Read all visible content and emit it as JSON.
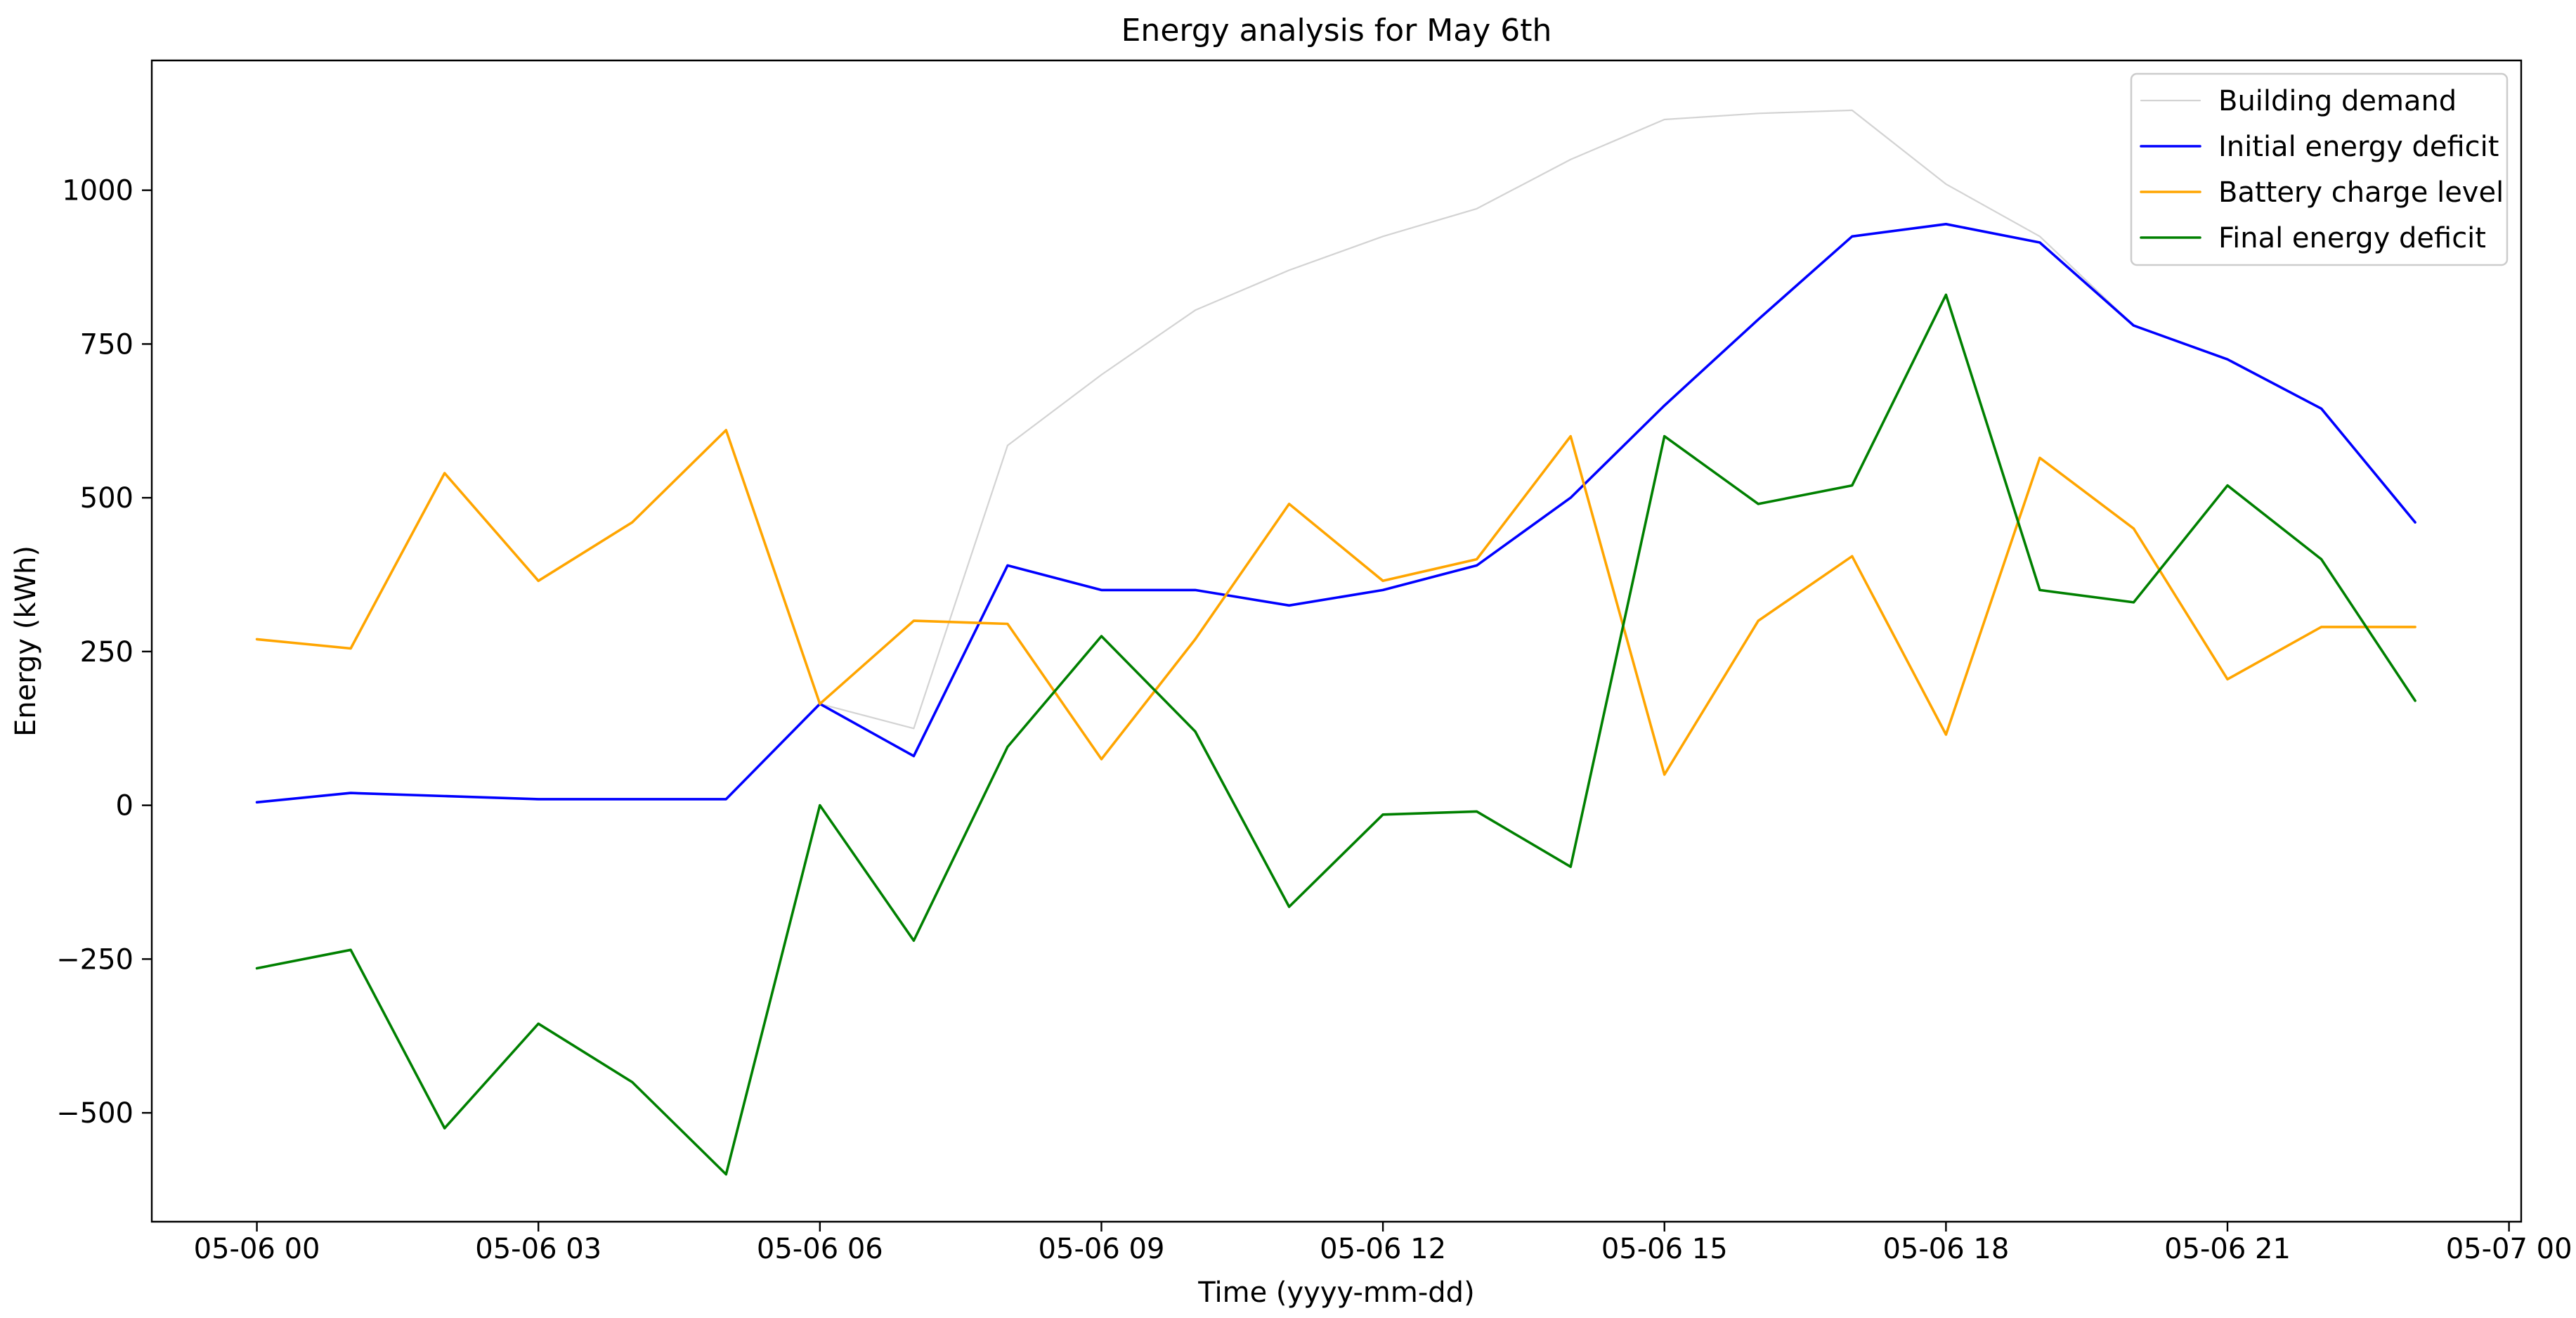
{
  "window": {
    "background": "#ffffff"
  },
  "chart_data": {
    "type": "line",
    "title": "Energy analysis for May 6th",
    "xlabel": "Time (yyyy-mm-dd)",
    "ylabel": "Energy (kWh)",
    "grid": false,
    "legend_position": "upper right",
    "xlim_hours": [
      -1.12,
      24.13
    ],
    "ylim": [
      -677,
      1211
    ],
    "x_hours": [
      0,
      1,
      2,
      3,
      4,
      5,
      6,
      7,
      8,
      9,
      10,
      11,
      12,
      13,
      14,
      15,
      16,
      17,
      18,
      19,
      20,
      21,
      22,
      23
    ],
    "x_ticks": [
      {
        "hour": 0,
        "label": "05-06 00"
      },
      {
        "hour": 3,
        "label": "05-06 03"
      },
      {
        "hour": 6,
        "label": "05-06 06"
      },
      {
        "hour": 9,
        "label": "05-06 09"
      },
      {
        "hour": 12,
        "label": "05-06 12"
      },
      {
        "hour": 15,
        "label": "05-06 15"
      },
      {
        "hour": 18,
        "label": "05-06 18"
      },
      {
        "hour": 21,
        "label": "05-06 21"
      },
      {
        "hour": 24,
        "label": "05-07 00"
      }
    ],
    "y_ticks": [
      {
        "value": 1000,
        "label": "1000"
      },
      {
        "value": 750,
        "label": "750"
      },
      {
        "value": 500,
        "label": "500"
      },
      {
        "value": 250,
        "label": "250"
      },
      {
        "value": 0,
        "label": "0"
      },
      {
        "value": -250,
        "label": "−250"
      },
      {
        "value": -500,
        "label": "−500"
      }
    ],
    "series": [
      {
        "name": "Building demand",
        "color": "#d3d3d3",
        "line_width": 2.2,
        "values": [
          5,
          20,
          15,
          10,
          10,
          10,
          165,
          125,
          585,
          700,
          805,
          870,
          925,
          970,
          1050,
          1115,
          1125,
          1130,
          1010,
          925,
          780,
          725,
          645,
          460
        ]
      },
      {
        "name": "Initial energy deficit",
        "color": "#0000ff",
        "line_width": 3.6,
        "values": [
          5,
          20,
          15,
          10,
          10,
          10,
          165,
          80,
          390,
          350,
          350,
          325,
          350,
          390,
          500,
          650,
          790,
          925,
          945,
          915,
          780,
          725,
          645,
          460
        ]
      },
      {
        "name": "Battery charge level",
        "color": "#ffa500",
        "line_width": 3.6,
        "values": [
          270,
          255,
          540,
          365,
          460,
          610,
          165,
          300,
          295,
          75,
          270,
          490,
          365,
          400,
          600,
          50,
          300,
          405,
          115,
          565,
          450,
          205,
          290,
          290
        ]
      },
      {
        "name": "Final energy deficit",
        "color": "#008000",
        "line_width": 3.6,
        "values": [
          -265,
          -235,
          -525,
          -355,
          -450,
          -600,
          0,
          -220,
          95,
          275,
          120,
          -165,
          -15,
          -10,
          -100,
          600,
          490,
          520,
          830,
          350,
          330,
          520,
          400,
          170
        ]
      }
    ]
  }
}
